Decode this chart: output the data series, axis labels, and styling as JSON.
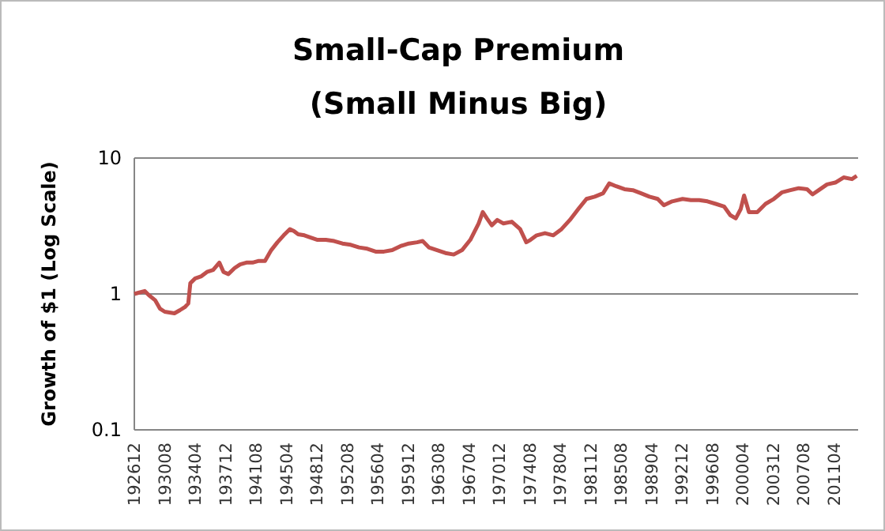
{
  "chart_data": {
    "type": "line",
    "title": "Small-Cap Premium\n(Small Minus Big)",
    "ylabel": "Growth of $1 (Log Scale)",
    "log": "y",
    "grid": "y",
    "marker": "none",
    "line_style": "solid",
    "x": [
      "1926-12",
      "1927-06",
      "1928-03",
      "1928-09",
      "1929-06",
      "1930-01",
      "1930-08",
      "1931-03",
      "1931-10",
      "1932-06",
      "1933-01",
      "1933-06",
      "1933-09",
      "1934-04",
      "1935-01",
      "1935-09",
      "1936-06",
      "1937-03",
      "1937-09",
      "1938-04",
      "1939-01",
      "1939-09",
      "1940-06",
      "1941-03",
      "1941-12",
      "1942-09",
      "1943-06",
      "1944-03",
      "1944-12",
      "1945-09",
      "1946-03",
      "1946-09",
      "1947-06",
      "1948-03",
      "1949-01",
      "1950-01",
      "1951-01",
      "1952-01",
      "1953-01",
      "1954-01",
      "1955-01",
      "1956-01",
      "1957-01",
      "1958-01",
      "1959-01",
      "1960-01",
      "1961-01",
      "1961-09",
      "1962-06",
      "1963-06",
      "1964-06",
      "1965-06",
      "1966-06",
      "1967-06",
      "1968-06",
      "1968-12",
      "1969-06",
      "1970-01",
      "1970-09",
      "1971-06",
      "1972-06",
      "1973-06",
      "1974-03",
      "1974-09",
      "1975-06",
      "1976-06",
      "1977-06",
      "1978-06",
      "1979-06",
      "1980-06",
      "1981-06",
      "1982-06",
      "1983-06",
      "1984-03",
      "1985-01",
      "1986-01",
      "1987-01",
      "1988-01",
      "1989-01",
      "1990-01",
      "1990-10",
      "1991-10",
      "1993-01",
      "1994-01",
      "1995-01",
      "1996-01",
      "1997-01",
      "1998-01",
      "1998-10",
      "1999-06",
      "2000-01",
      "2000-06",
      "2001-01",
      "2002-01",
      "2003-01",
      "2004-01",
      "2005-01",
      "2006-01",
      "2007-01",
      "2008-01",
      "2008-09",
      "2009-06",
      "2010-06",
      "2011-06",
      "2012-06",
      "2013-06",
      "2014-01"
    ],
    "series": [
      {
        "color": "#c0504d",
        "values": [
          1.0,
          1.02,
          1.05,
          0.98,
          0.9,
          0.78,
          0.74,
          0.73,
          0.72,
          0.76,
          0.8,
          0.85,
          1.2,
          1.3,
          1.35,
          1.45,
          1.5,
          1.7,
          1.45,
          1.4,
          1.55,
          1.65,
          1.7,
          1.7,
          1.75,
          1.75,
          2.1,
          2.4,
          2.7,
          3.0,
          2.9,
          2.75,
          2.7,
          2.6,
          2.5,
          2.5,
          2.45,
          2.35,
          2.3,
          2.2,
          2.15,
          2.05,
          2.05,
          2.1,
          2.25,
          2.35,
          2.4,
          2.45,
          2.2,
          2.1,
          2.0,
          1.95,
          2.1,
          2.5,
          3.3,
          4.0,
          3.6,
          3.2,
          3.5,
          3.3,
          3.4,
          3.0,
          2.4,
          2.5,
          2.7,
          2.8,
          2.7,
          3.0,
          3.5,
          4.2,
          5.0,
          5.2,
          5.5,
          6.5,
          6.2,
          5.9,
          5.8,
          5.5,
          5.2,
          5.0,
          4.5,
          4.8,
          5.0,
          4.9,
          4.9,
          4.8,
          4.6,
          4.4,
          3.8,
          3.6,
          4.2,
          5.3,
          4.0,
          4.0,
          4.6,
          5.0,
          5.6,
          5.8,
          6.0,
          5.9,
          5.4,
          5.8,
          6.4,
          6.6,
          7.2,
          7.0,
          7.4
        ]
      }
    ],
    "ylim": [
      0.1,
      10
    ],
    "yticks": [
      0.1,
      1,
      10
    ],
    "xlim": [
      "1926-12",
      "2014-03"
    ],
    "xticks": [
      {
        "value": "1926-12",
        "label": "192612"
      },
      {
        "value": "1930-08",
        "label": "193008"
      },
      {
        "value": "1934-04",
        "label": "193404"
      },
      {
        "value": "1937-12",
        "label": "193712"
      },
      {
        "value": "1941-08",
        "label": "194108"
      },
      {
        "value": "1945-04",
        "label": "194504"
      },
      {
        "value": "1948-12",
        "label": "194812"
      },
      {
        "value": "1952-08",
        "label": "195208"
      },
      {
        "value": "1956-04",
        "label": "195604"
      },
      {
        "value": "1959-12",
        "label": "195912"
      },
      {
        "value": "1963-08",
        "label": "196308"
      },
      {
        "value": "1967-04",
        "label": "196704"
      },
      {
        "value": "1970-12",
        "label": "197012"
      },
      {
        "value": "1974-08",
        "label": "197408"
      },
      {
        "value": "1978-04",
        "label": "197804"
      },
      {
        "value": "1981-12",
        "label": "198112"
      },
      {
        "value": "1985-08",
        "label": "198508"
      },
      {
        "value": "1989-04",
        "label": "198904"
      },
      {
        "value": "1992-12",
        "label": "199212"
      },
      {
        "value": "1996-08",
        "label": "199608"
      },
      {
        "value": "2000-04",
        "label": "200004"
      },
      {
        "value": "2003-12",
        "label": "200312"
      },
      {
        "value": "2007-08",
        "label": "200708"
      },
      {
        "value": "2011-04",
        "label": "201104"
      }
    ]
  }
}
